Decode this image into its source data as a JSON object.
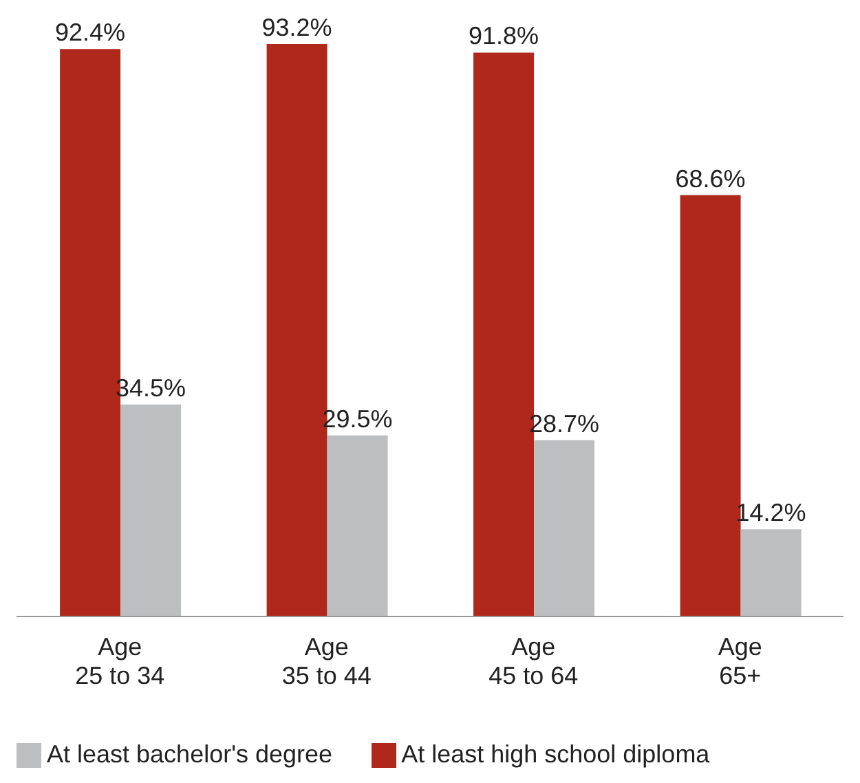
{
  "chart_data": {
    "type": "bar",
    "categories": [
      "Age 25 to 34",
      "Age 35 to 44",
      "Age 45 to 64",
      "Age 65+"
    ],
    "series": [
      {
        "name": "At least high school diploma",
        "color": "#b0281c",
        "values": [
          92.4,
          93.2,
          91.8,
          68.6
        ],
        "value_labels": [
          "92.4%",
          "93.2%",
          "91.8%",
          "68.6%"
        ]
      },
      {
        "name": "At least bachelor's degree",
        "color": "#bcbec0",
        "values": [
          34.5,
          29.5,
          28.7,
          14.2
        ],
        "value_labels": [
          "34.5%",
          "29.5%",
          "28.7%",
          "14.2%"
        ]
      }
    ],
    "legend": "bottom left"
  }
}
